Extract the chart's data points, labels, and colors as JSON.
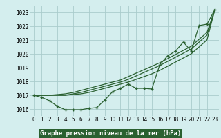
{
  "title": "Graphe pression niveau de la mer (hPa)",
  "hours": [
    0,
    1,
    2,
    3,
    4,
    5,
    6,
    7,
    8,
    9,
    10,
    11,
    12,
    13,
    14,
    15,
    16,
    17,
    18,
    19,
    20,
    21,
    22,
    23
  ],
  "series_main": [
    1017.0,
    1016.85,
    1016.6,
    1016.2,
    1015.95,
    1015.95,
    1015.95,
    1016.05,
    1016.1,
    1016.65,
    1017.25,
    1017.5,
    1017.8,
    1017.5,
    1017.5,
    1017.45,
    1019.2,
    1019.85,
    1020.2,
    1020.85,
    1020.2,
    1022.05,
    1022.15,
    1023.2
  ],
  "series_a": [
    1017.0,
    1017.0,
    1017.0,
    1017.0,
    1017.0,
    1017.05,
    1017.1,
    1017.2,
    1017.35,
    1017.5,
    1017.65,
    1017.8,
    1017.95,
    1018.15,
    1018.35,
    1018.55,
    1018.8,
    1019.1,
    1019.4,
    1019.7,
    1020.0,
    1020.5,
    1021.0,
    1023.2
  ],
  "series_b": [
    1017.0,
    1017.0,
    1017.0,
    1017.0,
    1017.0,
    1017.1,
    1017.2,
    1017.35,
    1017.5,
    1017.65,
    1017.8,
    1017.95,
    1018.15,
    1018.4,
    1018.65,
    1018.9,
    1019.15,
    1019.45,
    1019.75,
    1020.05,
    1020.35,
    1020.85,
    1021.35,
    1023.2
  ],
  "series_c": [
    1017.0,
    1017.0,
    1017.0,
    1017.05,
    1017.1,
    1017.2,
    1017.35,
    1017.5,
    1017.65,
    1017.8,
    1017.95,
    1018.1,
    1018.35,
    1018.6,
    1018.85,
    1019.1,
    1019.35,
    1019.65,
    1019.95,
    1020.25,
    1020.55,
    1021.05,
    1021.55,
    1023.2
  ],
  "bg_color": "#d4eeee",
  "line_color": "#2a6030",
  "grid_color": "#aacccc",
  "ylim": [
    1015.5,
    1023.5
  ],
  "yticks": [
    1016,
    1017,
    1018,
    1019,
    1020,
    1021,
    1022,
    1023
  ],
  "tick_fontsize": 5.5,
  "label_fontsize": 6.5
}
